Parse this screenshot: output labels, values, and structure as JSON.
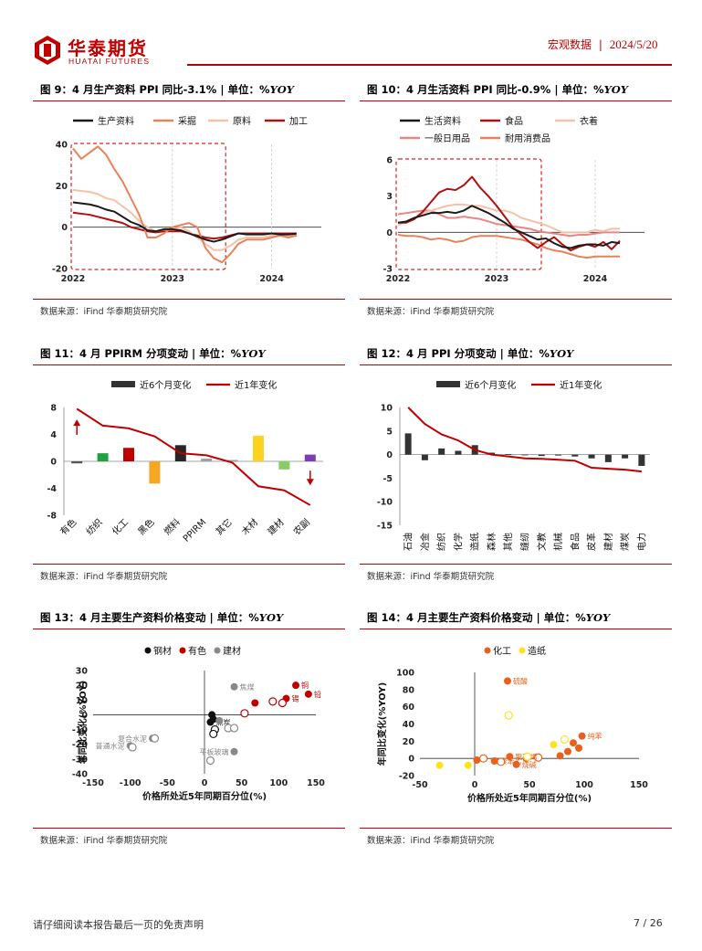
{
  "header": {
    "logo_cn": "华泰期货",
    "logo_en": "HUATAI FUTURES",
    "section": "宏观数据",
    "sep": "|",
    "date": "2024/5/20",
    "colors": {
      "brand": "#c00000"
    }
  },
  "figures": [
    {
      "id": "fig9",
      "title_prefix": "图 9：4 月生产资料 PPI 同比-3.1%",
      "title_unit": "单位：%",
      "title_unit_em": "YOY",
      "source": "数据来源：iFind   华泰期货研究院"
    },
    {
      "id": "fig10",
      "title_prefix": "图 10：4 月生活资料 PPI 同比-0.9%",
      "title_unit": "单位：%",
      "title_unit_em": "YOY",
      "source": "数据来源：iFind   华泰期货研究院"
    },
    {
      "id": "fig11",
      "title_prefix": "图 11：4 月 PPIRM 分项变动",
      "title_unit": "单位：%",
      "title_unit_em": "YOY",
      "source": "数据来源：iFind   华泰期货研究院"
    },
    {
      "id": "fig12",
      "title_prefix": "图 12：4 月 PPI 分项变动",
      "title_unit": "单位：%",
      "title_unit_em": "YOY",
      "source": "数据来源：iFind   华泰期货研究院"
    },
    {
      "id": "fig13",
      "title_prefix": "图 13：4 月主要生产资料价格变动",
      "title_unit": "单位：%",
      "title_unit_em": "YOY",
      "source": "数据来源：iFind   华泰期货研究院"
    },
    {
      "id": "fig14",
      "title_prefix": "图 14：4 月主要生产资料价格变动",
      "title_unit": "单位：%",
      "title_unit_em": "YOY",
      "source": "数据来源：iFind   华泰期货研究院"
    }
  ],
  "footer": {
    "disclaimer": "请仔细阅读本报告最后一页的免责声明",
    "page": "7 / 26"
  },
  "chart_data": [
    {
      "id": "fig9",
      "type": "line",
      "title": "",
      "ylim": [
        -20,
        40
      ],
      "yticks": [
        "40",
        "20",
        "0",
        "-20"
      ],
      "xticks": [
        "2022",
        "2023",
        "2024"
      ],
      "x_dates": [
        "2022-01",
        "2022-02",
        "2022-03",
        "2022-04",
        "2022-05",
        "2022-06",
        "2022-07",
        "2022-08",
        "2022-09",
        "2022-10",
        "2022-11",
        "2022-12",
        "2023-01",
        "2023-02",
        "2023-03",
        "2023-04",
        "2023-05",
        "2023-06",
        "2023-07",
        "2023-08",
        "2023-09",
        "2023-10",
        "2023-11",
        "2023-12",
        "2024-01",
        "2024-02",
        "2024-03",
        "2024-04"
      ],
      "legend_position": "top",
      "series": [
        {
          "name": "生产资料",
          "color": "#1a1a1a",
          "values": [
            12,
            11.5,
            11,
            10,
            8.5,
            7.5,
            5,
            2.5,
            1,
            -1.5,
            -2,
            -1,
            -1,
            -1.5,
            -3,
            -4.5,
            -6,
            -7,
            -6,
            -4.5,
            -3,
            -3.5,
            -3.5,
            -3.5,
            -3,
            -3.5,
            -3.5,
            -3.1
          ]
        },
        {
          "name": "采掘",
          "color": "#e8825a",
          "values": [
            38,
            33,
            36,
            39,
            35,
            28,
            22,
            14,
            6,
            -5,
            -5,
            -3,
            0,
            1,
            2,
            0,
            -10,
            -15,
            -17,
            -13,
            -8,
            -6,
            -6,
            -6,
            -5,
            -4,
            -5,
            -4
          ]
        },
        {
          "name": "原料",
          "color": "#f4c2a8",
          "values": [
            18,
            17.5,
            17,
            16,
            14,
            13,
            10,
            7,
            3,
            0,
            -2,
            -1,
            -1,
            0,
            -2,
            -5,
            -8,
            -11,
            -11,
            -9,
            -6,
            -5,
            -5,
            -5,
            -4,
            -4,
            -4,
            -3.5
          ]
        },
        {
          "name": "加工",
          "color": "#b01010",
          "values": [
            7,
            6.5,
            6,
            5,
            4,
            3,
            2,
            0,
            -1,
            -2,
            -2.5,
            -2,
            -2,
            -2,
            -3,
            -4,
            -5,
            -5.5,
            -5,
            -4,
            -3,
            -3,
            -3,
            -3,
            -3,
            -3,
            -3,
            -3
          ]
        }
      ],
      "highlight_box": {
        "from": "2022-01",
        "to": "2023-07"
      }
    },
    {
      "id": "fig10",
      "type": "line",
      "title": "",
      "ylim": [
        -3,
        6
      ],
      "yticks": [
        "6",
        "3",
        "0",
        "-3"
      ],
      "xticks": [
        "2022",
        "2023",
        "2024"
      ],
      "x_dates": [
        "2022-01",
        "2022-02",
        "2022-03",
        "2022-04",
        "2022-05",
        "2022-06",
        "2022-07",
        "2022-08",
        "2022-09",
        "2022-10",
        "2022-11",
        "2022-12",
        "2023-01",
        "2023-02",
        "2023-03",
        "2023-04",
        "2023-05",
        "2023-06",
        "2023-07",
        "2023-08",
        "2023-09",
        "2023-10",
        "2023-11",
        "2023-12",
        "2024-01",
        "2024-02",
        "2024-03",
        "2024-04"
      ],
      "legend_position": "top",
      "series": [
        {
          "name": "生活资料",
          "color": "#1a1a1a",
          "values": [
            0.8,
            0.9,
            1.2,
            1.4,
            1.6,
            1.6,
            1.7,
            1.6,
            1.8,
            2.2,
            1.9,
            1.6,
            1.2,
            0.8,
            0.3,
            0,
            -0.3,
            -0.6,
            -0.5,
            -0.9,
            -1.2,
            -1.3,
            -1.1,
            -1,
            -1,
            -1.1,
            -0.8,
            -0.9
          ]
        },
        {
          "name": "食品",
          "color": "#b01010",
          "values": [
            0.8,
            0.8,
            1.1,
            1.7,
            2.5,
            3.3,
            3.6,
            3.5,
            3.9,
            4.6,
            3.7,
            3,
            2.2,
            1.3,
            0.4,
            -0.2,
            -0.8,
            -1.3,
            -0.8,
            -0.4,
            -1,
            -1.5,
            -1.2,
            -1,
            -1.2,
            -0.8,
            -1.4,
            -0.7
          ]
        },
        {
          "name": "衣着",
          "color": "#f4c2a8",
          "values": [
            0.6,
            0.9,
            1.2,
            1.6,
            1.8,
            2,
            2.2,
            2.3,
            2.3,
            2.2,
            2.2,
            2,
            1.8,
            1.8,
            1.6,
            1.2,
            1,
            0.8,
            0.6,
            0.3,
            0,
            0,
            0,
            0,
            0.2,
            0.1,
            0.3,
            0.3
          ]
        },
        {
          "name": "一般日用品",
          "color": "#e88585",
          "values": [
            1.5,
            1.6,
            1.7,
            1.8,
            1.8,
            1.5,
            1.2,
            1.2,
            1.3,
            1.2,
            1.1,
            0.9,
            0.7,
            0.6,
            0.5,
            0.4,
            0.3,
            0.1,
            0,
            -0.1,
            -0.2,
            -0.3,
            -0.2,
            -0.2,
            -0.1,
            0,
            0,
            0
          ]
        },
        {
          "name": "耐用消费品",
          "color": "#e8825a",
          "values": [
            -0.2,
            -0.3,
            -0.3,
            -0.4,
            -0.6,
            -0.5,
            -0.6,
            -0.8,
            -0.7,
            -0.4,
            -0.3,
            -0.3,
            -0.3,
            -0.4,
            -0.5,
            -0.6,
            -0.8,
            -1,
            -1.3,
            -1.5,
            -1.6,
            -1.8,
            -2,
            -2.1,
            -2,
            -2,
            -2,
            -2
          ]
        }
      ],
      "highlight_box": {
        "from": "2022-01",
        "to": "2023-06"
      }
    },
    {
      "id": "fig11",
      "type": "bar",
      "title": "",
      "ylim": [
        -8,
        8
      ],
      "yticks": [
        "8",
        "4",
        "0",
        "-4",
        "-8"
      ],
      "categories": [
        "有色",
        "纺织",
        "化工",
        "黑色",
        "燃料",
        "PPIRM",
        "其它",
        "木材",
        "建材",
        "农副"
      ],
      "legend_position": "top",
      "series": [
        {
          "name": "近6个月变化",
          "type": "bar",
          "values": [
            -0.3,
            1.2,
            2.0,
            -3.3,
            2.4,
            0.4,
            0.2,
            3.8,
            -1.2,
            1.0
          ],
          "colors": [
            "#555555",
            "#20a040",
            "#c00000",
            "#f5a623",
            "#262626",
            "#9e9e9e",
            "#9e9e9e",
            "#ffd21f",
            "#88cc66",
            "#7b3fb5"
          ]
        },
        {
          "name": "近1年变化",
          "type": "line",
          "color": "#c00000",
          "values": [
            7.8,
            5.3,
            4.9,
            3.7,
            1.2,
            0.9,
            -0.2,
            -3.7,
            -4.3,
            -6.5
          ]
        }
      ],
      "annotations": [
        "arrow-up-at-有色",
        "arrow-down-at-农副"
      ]
    },
    {
      "id": "fig12",
      "type": "bar",
      "title": "",
      "ylim": [
        -15,
        10
      ],
      "yticks": [
        "10",
        "5",
        "0",
        "-5",
        "-10",
        "-15"
      ],
      "categories": [
        "石油",
        "冶金",
        "纺织",
        "化学",
        "造纸",
        "森林",
        "其他",
        "缝纫",
        "文教",
        "机械",
        "食品",
        "皮革",
        "建材",
        "煤炭",
        "电力"
      ],
      "legend_position": "top",
      "series": [
        {
          "name": "近6个月变化",
          "type": "bar",
          "color": "#333333",
          "values": [
            4.5,
            -1.2,
            1.3,
            0.8,
            2.0,
            0.4,
            0.1,
            -0.1,
            -0.3,
            -0.2,
            -0.4,
            -0.8,
            -1.6,
            -0.8,
            -2.4
          ]
        },
        {
          "name": "近1年变化",
          "type": "line",
          "color": "#c00000",
          "values": [
            10,
            6.5,
            4.3,
            3.0,
            1.0,
            0.0,
            -0.4,
            -0.8,
            -0.9,
            -1.1,
            -1.3,
            -2.8,
            -3.0,
            -3.2,
            -3.6
          ]
        }
      ]
    },
    {
      "id": "fig13",
      "type": "scatter",
      "title": "",
      "xlabel": "价格所处近5年同期百分位(%)",
      "ylabel": "年同比变化(%YOY)",
      "xlim": [
        -150,
        150
      ],
      "ylim": [
        -40,
        30
      ],
      "xticks": [
        "-150",
        "-100",
        "-50",
        "0",
        "50",
        "100",
        "150"
      ],
      "yticks": [
        "30",
        "20",
        "10",
        "0",
        "-10",
        "-20",
        "-30",
        "-40"
      ],
      "legend_position": "top",
      "legend": [
        {
          "name": "钢材",
          "color": "#111111"
        },
        {
          "name": "有色",
          "color": "#c00000"
        },
        {
          "name": "建材",
          "color": "#888888"
        }
      ],
      "points": [
        {
          "label": "焦煤",
          "group": "建材",
          "x": 40,
          "y": 19
        },
        {
          "label": "铜",
          "group": "有色",
          "x": 123,
          "y": 20
        },
        {
          "label": "铅",
          "group": "有色",
          "x": 140,
          "y": 14
        },
        {
          "label": "锡",
          "group": "有色",
          "x": 110,
          "y": 11
        },
        {
          "label": "",
          "group": "有色",
          "x": 68,
          "y": 8
        },
        {
          "label": "",
          "group": "有色",
          "x": 92,
          "y": 9,
          "hollow": true
        },
        {
          "label": "",
          "group": "有色",
          "x": 105,
          "y": 8,
          "hollow": true
        },
        {
          "label": "",
          "group": "有色",
          "x": 54,
          "y": 1,
          "hollow": true
        },
        {
          "label": "",
          "group": "钢材",
          "x": 10,
          "y": 0
        },
        {
          "label": "",
          "group": "钢材",
          "x": 12,
          "y": -3
        },
        {
          "label": "焦炭",
          "group": "钢材",
          "x": 8,
          "y": -5
        },
        {
          "label": "",
          "group": "钢材",
          "x": 14,
          "y": -10,
          "hollow": true
        },
        {
          "label": "",
          "group": "钢材",
          "x": 12,
          "y": -13,
          "hollow": true
        },
        {
          "label": "",
          "group": "建材",
          "x": 20,
          "y": -4
        },
        {
          "label": "",
          "group": "建材",
          "x": 32,
          "y": -9,
          "hollow": true
        },
        {
          "label": "",
          "group": "建材",
          "x": 40,
          "y": -9,
          "hollow": true
        },
        {
          "label": "平板玻璃",
          "group": "建材",
          "x": 40,
          "y": -25
        },
        {
          "label": "复合水泥",
          "group": "建材",
          "x": -70,
          "y": -16
        },
        {
          "label": "",
          "group": "建材",
          "x": -67,
          "y": -16,
          "hollow": true
        },
        {
          "label": "普通水泥",
          "group": "建材",
          "x": -100,
          "y": -21
        },
        {
          "label": "",
          "group": "建材",
          "x": -97,
          "y": -22,
          "hollow": true
        },
        {
          "label": "",
          "group": "建材",
          "x": 8,
          "y": -31,
          "hollow": true
        }
      ]
    },
    {
      "id": "fig14",
      "type": "scatter",
      "title": "",
      "xlabel": "价格所处近5年同期百分位(%)",
      "ylabel": "年同比变化(%YOY)",
      "xlim": [
        -50,
        150
      ],
      "ylim": [
        -20,
        100
      ],
      "xticks": [
        "-50",
        "0",
        "50",
        "100",
        "150"
      ],
      "yticks": [
        "100",
        "80",
        "60",
        "40",
        "20",
        "0",
        "-20"
      ],
      "legend_position": "top",
      "legend": [
        {
          "name": "化工",
          "color": "#e8601c"
        },
        {
          "name": "造纸",
          "color": "#ffe21a"
        }
      ],
      "points": [
        {
          "label": "硫酸",
          "group": "化工",
          "x": 30,
          "y": 90
        },
        {
          "label": "",
          "group": "造纸",
          "x": 31,
          "y": 50,
          "hollow": true
        },
        {
          "label": "纯苯",
          "group": "化工",
          "x": 98,
          "y": 26
        },
        {
          "label": "",
          "group": "化工",
          "x": 90,
          "y": 18
        },
        {
          "label": "",
          "group": "化工",
          "x": 95,
          "y": 12
        },
        {
          "label": "",
          "group": "化工",
          "x": 85,
          "y": 8
        },
        {
          "label": "",
          "group": "造纸",
          "x": 72,
          "y": 16
        },
        {
          "label": "",
          "group": "造纸",
          "x": 82,
          "y": 22,
          "hollow": true
        },
        {
          "label": "",
          "group": "化工",
          "x": 78,
          "y": 3
        },
        {
          "label": "",
          "group": "化工",
          "x": 58,
          "y": 1,
          "hollow": true
        },
        {
          "label": "",
          "group": "化工",
          "x": 47,
          "y": 0
        },
        {
          "label": "聚丙烯",
          "group": "化工",
          "x": 32,
          "y": 2
        },
        {
          "label": "聚苯乙",
          "group": "化工",
          "x": 18,
          "y": -3
        },
        {
          "label": "",
          "group": "化工",
          "x": 2,
          "y": -2
        },
        {
          "label": "烧碱",
          "group": "化工",
          "x": 38,
          "y": -7
        },
        {
          "label": "",
          "group": "化工",
          "x": 24,
          "y": -4,
          "hollow": true
        },
        {
          "label": "",
          "group": "化工",
          "x": 8,
          "y": 0,
          "hollow": true
        },
        {
          "label": "",
          "group": "造纸",
          "x": -32,
          "y": -8
        },
        {
          "label": "",
          "group": "造纸",
          "x": -6,
          "y": -8
        },
        {
          "label": "",
          "group": "造纸",
          "x": 48,
          "y": 2,
          "hollow": true
        }
      ]
    }
  ]
}
